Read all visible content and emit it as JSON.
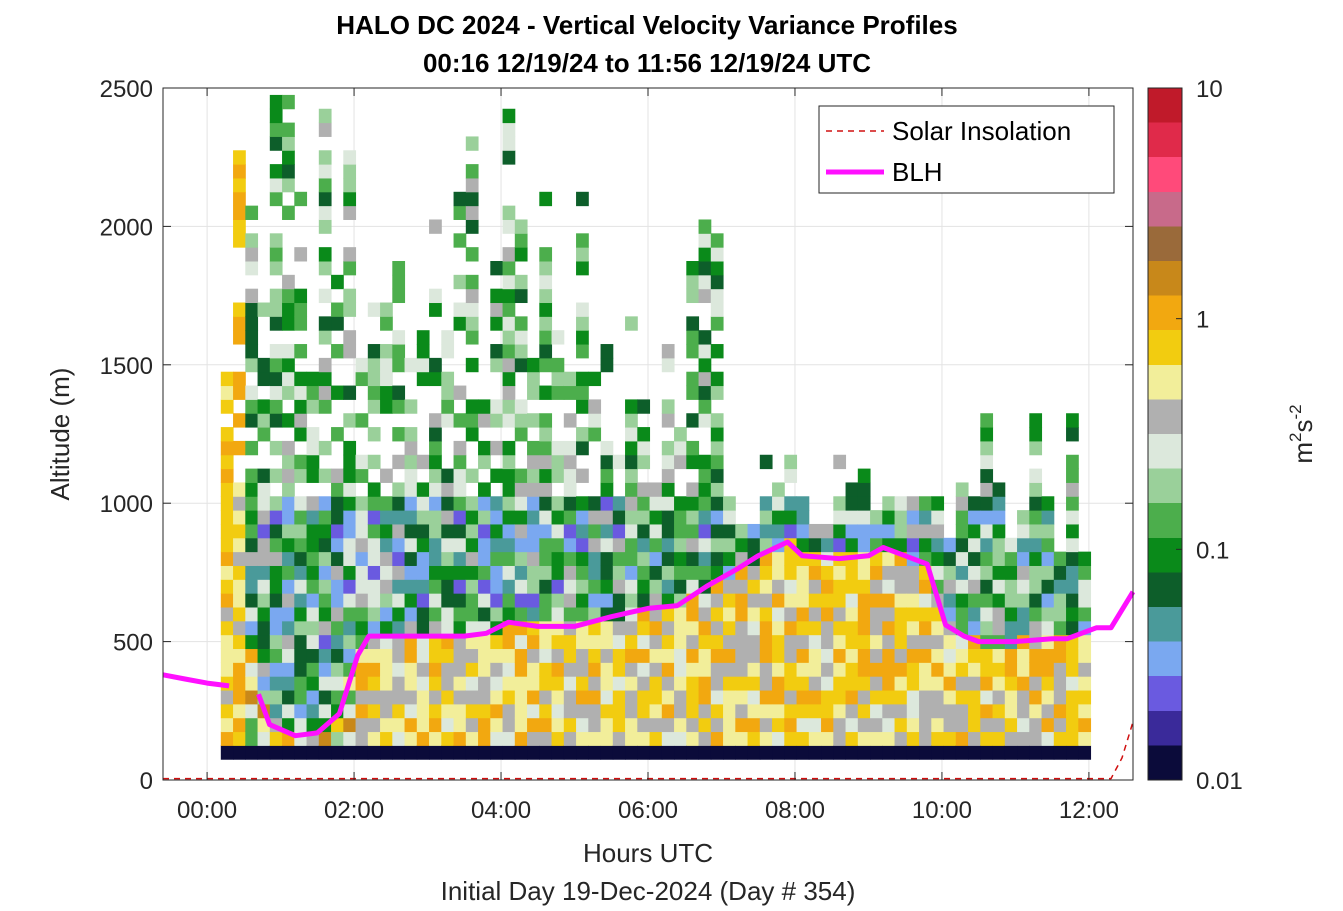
{
  "chart_data": {
    "type": "heatmap",
    "title": "HALO DC 2024 - Vertical Velocity Variance Profiles",
    "subtitle": "00:16 12/19/24 to 11:56 12/19/24  UTC",
    "xlabel": "Hours UTC",
    "ylabel": "Altitude (m)",
    "footer": "Initial Day 19-Dec-2024 (Day # 354)",
    "xlim_hours": [
      -0.6,
      12.6
    ],
    "ylim": [
      0,
      2500
    ],
    "x_ticks": [
      {
        "value": 0,
        "label": "00:00"
      },
      {
        "value": 2,
        "label": "02:00"
      },
      {
        "value": 4,
        "label": "04:00"
      },
      {
        "value": 6,
        "label": "06:00"
      },
      {
        "value": 8,
        "label": "08:00"
      },
      {
        "value": 10,
        "label": "10:00"
      },
      {
        "value": 12,
        "label": "12:00"
      }
    ],
    "y_ticks": [
      {
        "value": 0,
        "label": "0"
      },
      {
        "value": 500,
        "label": "500"
      },
      {
        "value": 1000,
        "label": "1000"
      },
      {
        "value": 1500,
        "label": "1500"
      },
      {
        "value": 2000,
        "label": "2000"
      },
      {
        "value": 2500,
        "label": "2500"
      }
    ],
    "grid": true,
    "colorbar": {
      "label_base": "m",
      "label_exp1": "2",
      "label_mid": "s",
      "label_exp2": "-2",
      "scale": "log",
      "range": [
        0.01,
        10
      ],
      "ticks": [
        {
          "value": 0.01,
          "label": "0.01"
        },
        {
          "value": 0.1,
          "label": "0.1"
        },
        {
          "value": 1,
          "label": "1"
        },
        {
          "value": 10,
          "label": "10"
        }
      ],
      "colormap": [
        "#0b0b3a",
        "#3a2a9a",
        "#6a5ae0",
        "#7aa8f0",
        "#4a9a9a",
        "#0d5e2a",
        "#0a8a1a",
        "#4cae4c",
        "#9ad09a",
        "#dce8dc",
        "#b0b0b0",
        "#f2ee9a",
        "#f2cc10",
        "#f2a810",
        "#c8881a",
        "#9a6a3a",
        "#c86a8a",
        "#ff4a7a",
        "#e02a4a",
        "#c01a2a"
      ]
    },
    "legend": {
      "placement": "top-right",
      "entries": [
        {
          "label": "Solar Insolation",
          "color": "#d01010",
          "style": "dashed"
        },
        {
          "label": "BLH",
          "color": "#ff10ff",
          "style": "solid"
        }
      ]
    },
    "heatmap_grid": {
      "time_start_hours": 0.27,
      "time_step_hours": 0.1667,
      "columns": 71,
      "alt_start_m": 100,
      "alt_step_m": 50,
      "rows": 48,
      "value_unit": "m2 s-2"
    },
    "series": [
      {
        "name": "BLH",
        "color": "#ff10ff",
        "x": [
          -0.6,
          -0.3,
          0.0,
          0.3,
          0.5,
          0.7,
          0.85,
          1.2,
          1.5,
          1.8,
          2.05,
          2.2,
          2.5,
          3.0,
          3.5,
          3.8,
          4.1,
          4.5,
          5.0,
          5.5,
          6.0,
          6.4,
          6.8,
          7.2,
          7.5,
          7.9,
          8.1,
          8.6,
          9.0,
          9.2,
          9.5,
          9.8,
          10.05,
          10.3,
          10.5,
          10.8,
          11.0,
          11.5,
          11.7,
          12.1,
          12.3,
          12.6
        ],
        "y": [
          380,
          365,
          350,
          340,
          null,
          310,
          200,
          160,
          170,
          240,
          450,
          520,
          520,
          520,
          520,
          530,
          570,
          555,
          555,
          590,
          620,
          630,
          700,
          760,
          810,
          860,
          810,
          800,
          810,
          840,
          810,
          780,
          560,
          520,
          500,
          500,
          500,
          510,
          510,
          550,
          550,
          680
        ]
      },
      {
        "name": "Solar Insolation",
        "color": "#d01010",
        "x": [
          -0.6,
          12.3,
          12.45,
          12.6
        ],
        "y": [
          5,
          5,
          80,
          210
        ]
      }
    ]
  }
}
